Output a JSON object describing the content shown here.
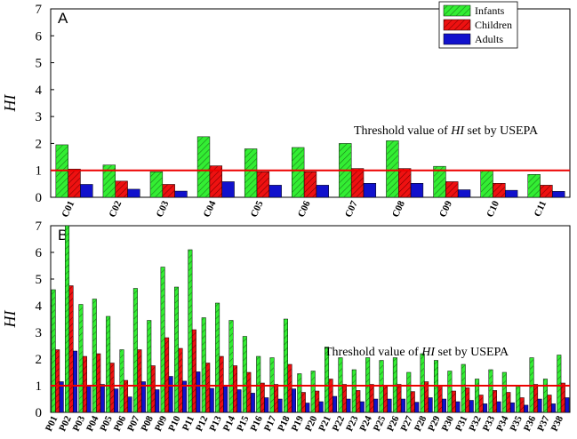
{
  "colors": {
    "infants": "#33ee33",
    "children": "#ee1111",
    "adults": "#1111cc",
    "threshold": "#ee0000"
  },
  "chart_data": [
    {
      "type": "bar",
      "panel_label": "A",
      "ylabel": "HI",
      "ylim": [
        0,
        7
      ],
      "yticks": [
        "0",
        "1",
        "2",
        "3",
        "4",
        "5",
        "6",
        "7"
      ],
      "categories": [
        "C01",
        "C02",
        "C03",
        "C04",
        "C05",
        "C06",
        "C07",
        "C08",
        "C09",
        "C10",
        "C11"
      ],
      "series": [
        {
          "name": "Infants",
          "values": [
            1.95,
            1.2,
            0.95,
            2.25,
            1.8,
            1.85,
            2.0,
            2.1,
            1.15,
            1.0,
            0.85
          ]
        },
        {
          "name": "Children",
          "values": [
            1.05,
            0.6,
            0.48,
            1.17,
            0.95,
            0.95,
            1.07,
            1.07,
            0.58,
            0.52,
            0.45
          ]
        },
        {
          "name": "Adults",
          "values": [
            0.48,
            0.3,
            0.23,
            0.58,
            0.45,
            0.45,
            0.52,
            0.52,
            0.28,
            0.26,
            0.22
          ]
        }
      ],
      "threshold": {
        "value": 1,
        "label_pre": "Threshold value of ",
        "label_var": "HI",
        "label_post": " set by USEPA"
      },
      "legend": {
        "position": "top-right",
        "entries": [
          "Infants",
          "Children",
          "Adults"
        ]
      }
    },
    {
      "type": "bar",
      "panel_label": "B",
      "ylabel": "HI",
      "ylim": [
        0,
        7
      ],
      "yticks": [
        "0",
        "1",
        "2",
        "3",
        "4",
        "5",
        "6",
        "7"
      ],
      "categories": [
        "P01",
        "P02",
        "P03",
        "P04",
        "P05",
        "P06",
        "P07",
        "P08",
        "P09",
        "P10",
        "P11",
        "P12",
        "P13",
        "P14",
        "P15",
        "P16",
        "P17",
        "P18",
        "P19",
        "P20",
        "P21",
        "P22",
        "P23",
        "P24",
        "P25",
        "P26",
        "P27",
        "P28",
        "P29",
        "P30",
        "P31",
        "P32",
        "P33",
        "P34",
        "P35",
        "P36",
        "P37",
        "P38"
      ],
      "series": [
        {
          "name": "Infants",
          "values": [
            4.6,
            7.0,
            4.05,
            4.25,
            3.6,
            2.35,
            4.65,
            3.45,
            5.45,
            4.7,
            6.1,
            3.55,
            4.1,
            3.45,
            2.85,
            2.1,
            2.05,
            3.5,
            1.45,
            1.55,
            2.45,
            2.05,
            1.6,
            2.05,
            1.95,
            2.05,
            1.5,
            2.2,
            1.95,
            1.55,
            1.8,
            1.25,
            1.6,
            1.5,
            1.0,
            2.05,
            1.25,
            2.15
          ]
        },
        {
          "name": "Children",
          "values": [
            2.35,
            4.75,
            2.1,
            2.2,
            1.85,
            1.2,
            2.35,
            1.75,
            2.8,
            2.4,
            3.1,
            1.85,
            2.1,
            1.75,
            1.5,
            1.1,
            1.05,
            1.8,
            0.75,
            0.8,
            1.25,
            1.05,
            0.82,
            1.05,
            1.0,
            1.05,
            0.78,
            1.15,
            1.0,
            0.8,
            0.92,
            0.65,
            0.82,
            0.75,
            0.55,
            1.05,
            0.65,
            1.1
          ]
        },
        {
          "name": "Adults",
          "values": [
            1.15,
            2.3,
            1.0,
            1.05,
            0.88,
            0.58,
            1.15,
            0.85,
            1.35,
            1.17,
            1.52,
            0.9,
            1.0,
            0.85,
            0.72,
            0.55,
            0.5,
            0.88,
            0.35,
            0.4,
            0.6,
            0.5,
            0.4,
            0.5,
            0.5,
            0.5,
            0.38,
            0.55,
            0.5,
            0.4,
            0.45,
            0.32,
            0.4,
            0.36,
            0.27,
            0.5,
            0.32,
            0.55
          ]
        }
      ],
      "threshold": {
        "value": 1,
        "label_pre": "Threshold value of ",
        "label_var": "HI",
        "label_post": " set by USEPA"
      }
    }
  ]
}
